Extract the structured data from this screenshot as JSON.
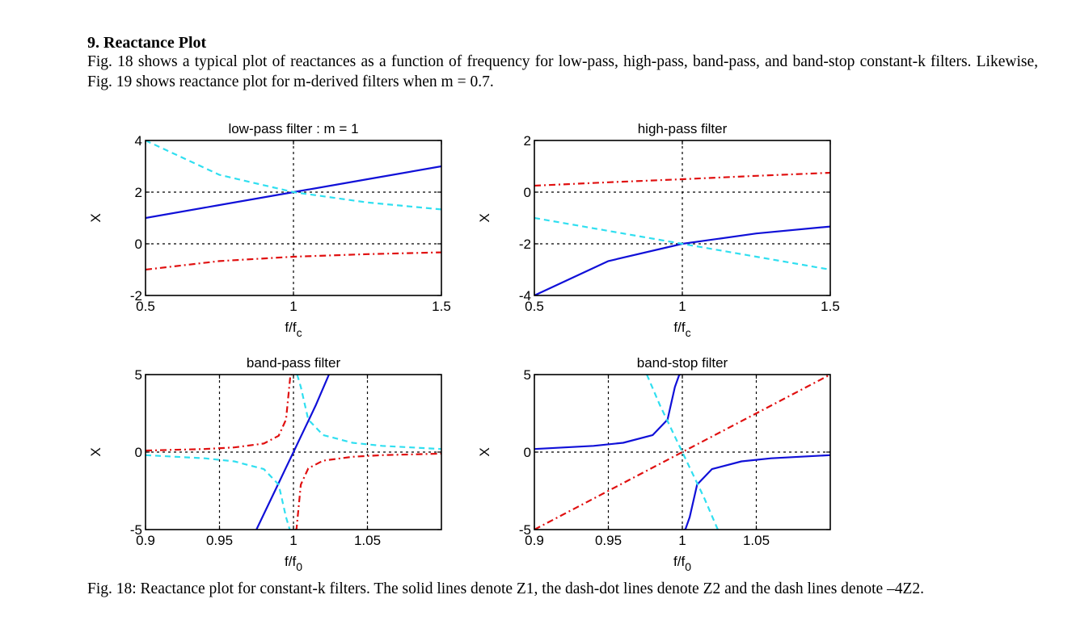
{
  "section": {
    "heading": "9. Reactance Plot",
    "intro": "Fig. 18 shows a typical plot of reactances as a function of frequency for low-pass, high-pass, band-pass, and band-stop constant-k filters. Likewise, Fig. 19 shows reactance plot for m-derived filters when m = 0.7."
  },
  "figure": {
    "caption": "Fig. 18: Reactance plot for constant-k filters. The solid lines denote Z1, the dash-dot lines denote Z2 and the dash lines denote –4Z2."
  },
  "colors": {
    "solid": "#1010d8",
    "dashdot": "#e01010",
    "dash": "#30dff0",
    "grid": "#000000"
  },
  "chart_data": [
    {
      "type": "line",
      "title": "low-pass filter : m = 1",
      "xlabel": "f/fc",
      "ylabel": "X",
      "xlim": [
        0.5,
        1.5
      ],
      "ylim": [
        -2,
        4
      ],
      "xticks": [
        "0.5",
        "1",
        "1.5"
      ],
      "yticks": [
        "-2",
        "0",
        "2",
        "4"
      ],
      "grid": true,
      "series": [
        {
          "style": "solid",
          "x": [
            0.5,
            0.75,
            1.0,
            1.25,
            1.5
          ],
          "y": [
            1.0,
            1.5,
            2.0,
            2.5,
            3.0
          ]
        },
        {
          "style": "dashdot",
          "x": [
            0.5,
            0.75,
            1.0,
            1.25,
            1.5
          ],
          "y": [
            -1.0,
            -0.67,
            -0.5,
            -0.4,
            -0.33
          ]
        },
        {
          "style": "dash",
          "x": [
            0.5,
            0.75,
            1.0,
            1.25,
            1.5
          ],
          "y": [
            4.0,
            2.67,
            2.0,
            1.6,
            1.33
          ]
        }
      ]
    },
    {
      "type": "line",
      "title": "high-pass filter",
      "xlabel": "f/fc",
      "ylabel": "X",
      "xlim": [
        0.5,
        1.5
      ],
      "ylim": [
        -4,
        2
      ],
      "xticks": [
        "0.5",
        "1",
        "1.5"
      ],
      "yticks": [
        "-4",
        "-2",
        "0",
        "2"
      ],
      "grid": true,
      "series": [
        {
          "style": "solid",
          "x": [
            0.5,
            0.75,
            1.0,
            1.25,
            1.5
          ],
          "y": [
            -4.0,
            -2.67,
            -2.0,
            -1.6,
            -1.33
          ]
        },
        {
          "style": "dashdot",
          "x": [
            0.5,
            0.75,
            1.0,
            1.25,
            1.5
          ],
          "y": [
            0.25,
            0.38,
            0.5,
            0.63,
            0.75
          ]
        },
        {
          "style": "dash",
          "x": [
            0.5,
            0.75,
            1.0,
            1.25,
            1.5
          ],
          "y": [
            -1.0,
            -1.5,
            -2.0,
            -2.5,
            -3.0
          ]
        }
      ]
    },
    {
      "type": "line",
      "title": "band-pass filter",
      "xlabel": "f/f0",
      "ylabel": "X",
      "xlim": [
        0.9,
        1.1
      ],
      "ylim": [
        -5,
        5
      ],
      "xticks": [
        "0.9",
        "0.95",
        "1",
        "1.05"
      ],
      "yticks": [
        "-5",
        "0",
        "5"
      ],
      "grid": true,
      "series": [
        {
          "style": "solid",
          "x": [
            0.975,
            0.985,
            0.99,
            0.995,
            1.0,
            1.005,
            1.01,
            1.015,
            1.024
          ],
          "y": [
            -5.0,
            -3.0,
            -2.0,
            -1.0,
            0.0,
            1.0,
            2.0,
            3.0,
            5.0
          ]
        },
        {
          "style": "dashdot",
          "x": [
            0.9,
            0.94,
            0.96,
            0.98,
            0.99,
            0.995,
            0.998,
            0.999
          ],
          "y": [
            0.1,
            0.2,
            0.3,
            0.55,
            1.05,
            2.1,
            5.0,
            5.0
          ]
        },
        {
          "style": "dashdot",
          "x": [
            1.001,
            1.002,
            1.005,
            1.01,
            1.02,
            1.04,
            1.06,
            1.1
          ],
          "y": [
            -5.0,
            -5.0,
            -2.1,
            -1.05,
            -0.55,
            -0.3,
            -0.2,
            -0.1
          ]
        },
        {
          "style": "dash",
          "x": [
            0.9,
            0.94,
            0.96,
            0.98,
            0.99,
            0.995,
            0.9975
          ],
          "y": [
            -0.2,
            -0.4,
            -0.6,
            -1.1,
            -2.1,
            -4.2,
            -5.0
          ]
        },
        {
          "style": "dash",
          "x": [
            1.0025,
            1.005,
            1.01,
            1.02,
            1.04,
            1.06,
            1.1
          ],
          "y": [
            5.0,
            4.2,
            2.1,
            1.1,
            0.6,
            0.4,
            0.2
          ]
        }
      ]
    },
    {
      "type": "line",
      "title": "band-stop filter",
      "xlabel": "f/f0",
      "ylabel": "X",
      "xlim": [
        0.9,
        1.1
      ],
      "ylim": [
        -5,
        5
      ],
      "xticks": [
        "0.9",
        "0.95",
        "1",
        "1.05"
      ],
      "yticks": [
        "-5",
        "0",
        "5"
      ],
      "grid": true,
      "series": [
        {
          "style": "solid",
          "x": [
            0.9,
            0.94,
            0.96,
            0.98,
            0.99,
            0.995,
            0.998,
            0.999
          ],
          "y": [
            0.2,
            0.4,
            0.6,
            1.1,
            2.1,
            4.2,
            5.0,
            5.0
          ]
        },
        {
          "style": "solid",
          "x": [
            1.001,
            1.002,
            1.005,
            1.01,
            1.02,
            1.04,
            1.06,
            1.1
          ],
          "y": [
            -5.0,
            -5.0,
            -4.2,
            -2.1,
            -1.1,
            -0.6,
            -0.4,
            -0.2
          ]
        },
        {
          "style": "dashdot",
          "x": [
            0.9,
            1.0,
            1.1
          ],
          "y": [
            -5.0,
            0.0,
            5.0
          ]
        },
        {
          "style": "dash",
          "x": [
            0.976,
            0.985,
            0.99,
            0.995,
            1.0,
            1.005,
            1.01,
            1.015,
            1.024
          ],
          "y": [
            5.0,
            3.0,
            2.0,
            1.0,
            0.0,
            -1.0,
            -2.0,
            -3.0,
            -5.0
          ]
        }
      ]
    }
  ]
}
